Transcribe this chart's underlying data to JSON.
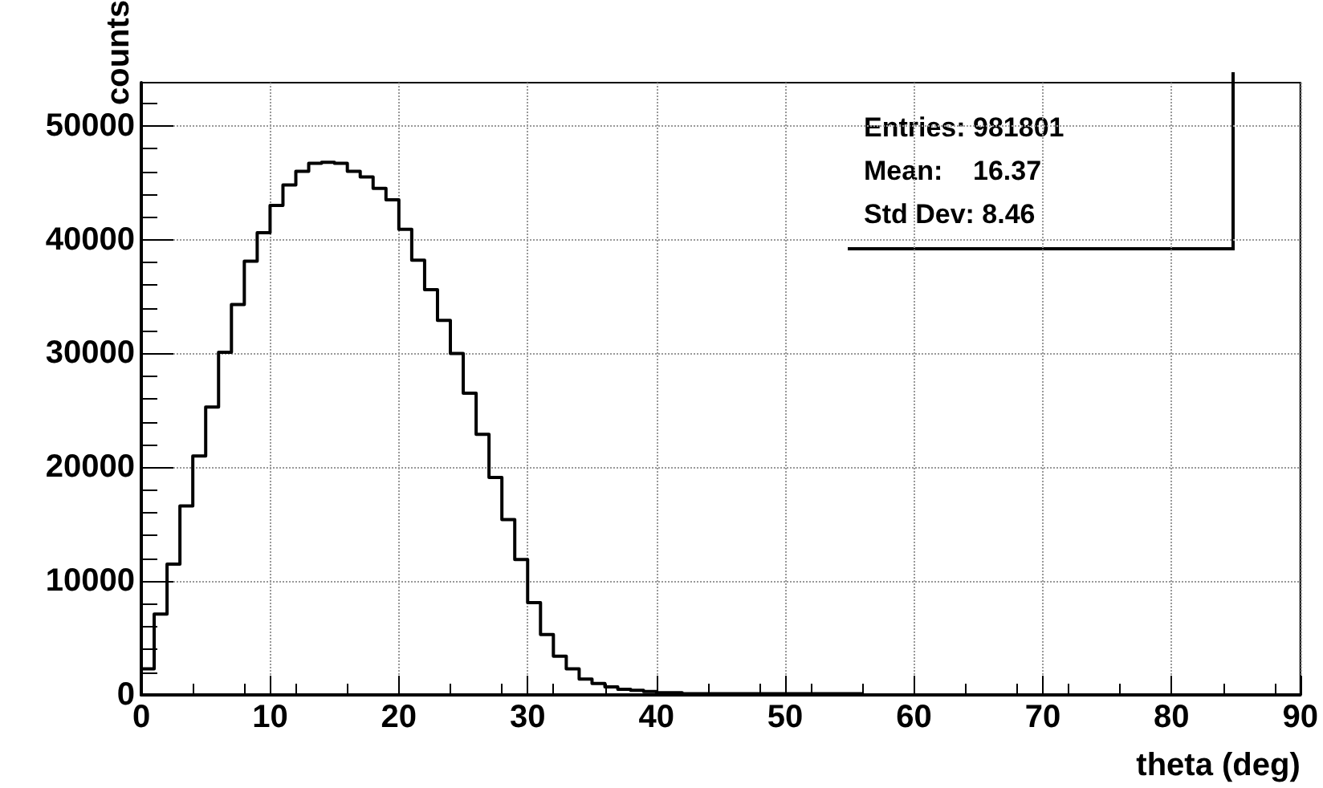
{
  "chart_data": {
    "type": "histogram",
    "xlabel": "theta (deg)",
    "ylabel": "counts",
    "bins": [
      0,
      1,
      2,
      3,
      4,
      5,
      6,
      7,
      8,
      9,
      10,
      11,
      12,
      13,
      14,
      15,
      16,
      17,
      18,
      19,
      20,
      21,
      22,
      23,
      24,
      25,
      26,
      27,
      28,
      29,
      30,
      31,
      32,
      33,
      34,
      35,
      36,
      37,
      38,
      39,
      40,
      41,
      42,
      43,
      44,
      45,
      46,
      47,
      48,
      49,
      50,
      51,
      52,
      53,
      54,
      55,
      56,
      57,
      58,
      59,
      60,
      61,
      62,
      63,
      64,
      65,
      66,
      67,
      68,
      69,
      70,
      71,
      72,
      73,
      74,
      75,
      76,
      77,
      78,
      79,
      80,
      81,
      82,
      83,
      84,
      85,
      86,
      87,
      88,
      89,
      90
    ],
    "values": [
      2300,
      7100,
      11500,
      16600,
      21000,
      25300,
      30100,
      34300,
      38100,
      40600,
      43000,
      44800,
      46000,
      46700,
      46800,
      46700,
      46000,
      45500,
      44500,
      43500,
      40900,
      38200,
      35600,
      32900,
      30000,
      26500,
      22900,
      19100,
      15400,
      11900,
      8100,
      5300,
      3400,
      2300,
      1400,
      1000,
      700,
      500,
      400,
      300,
      200,
      200,
      100,
      100,
      100,
      100,
      100,
      100,
      100,
      100,
      100,
      100,
      100,
      100,
      100,
      100,
      0,
      0,
      0,
      0,
      0,
      0,
      0,
      0,
      0,
      0,
      0,
      0,
      0,
      0,
      0,
      0,
      0,
      0,
      0,
      0,
      0,
      0,
      0,
      0,
      0,
      0,
      0,
      0,
      0,
      0,
      0,
      0,
      0,
      0
    ],
    "color": "#000000",
    "xlim": [
      0,
      90
    ],
    "xticks": [
      0,
      10,
      20,
      30,
      40,
      50,
      60,
      70,
      80,
      90
    ],
    "ylim": [
      0,
      53800
    ],
    "yticks": [
      0,
      10000,
      20000,
      30000,
      40000,
      50000
    ],
    "grid": true,
    "annotations": [
      "Entries: 981801",
      "Mean:    16.37",
      "Std Dev: 8.46"
    ]
  }
}
